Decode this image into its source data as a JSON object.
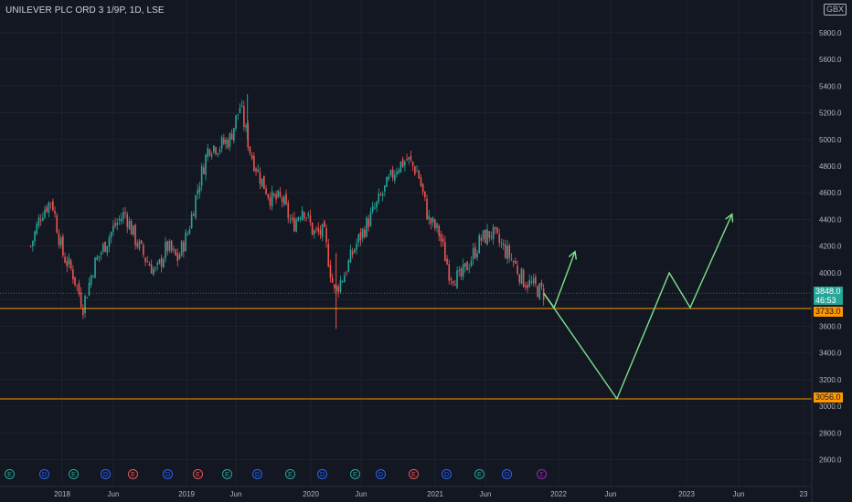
{
  "title": "UNILEVER PLC ORD 3 1/9P, 1D, LSE",
  "currency": "GBX",
  "colors": {
    "background": "#131722",
    "up": "#26a69a",
    "down": "#ef5350",
    "horizontal_line": "#ff9800",
    "projection": "#7ee08a",
    "current_price": "#26a69a"
  },
  "current_price": {
    "value": "3848.0",
    "countdown": "46:53"
  },
  "level_labels": [
    "3733.0",
    "3056.0"
  ],
  "event_markers": [
    "E",
    "D",
    "E",
    "D",
    "E",
    "D",
    "E",
    "E",
    "D",
    "E",
    "D",
    "E",
    "D",
    "E",
    "D",
    "E",
    "D",
    "Σ"
  ],
  "chart_data": {
    "type": "candlestick",
    "title": "UNILEVER PLC ORD 3 1/9P, 1D, LSE",
    "ylim": [
      2500,
      6100
    ],
    "y_ticks": [
      2600,
      2800,
      3000,
      3200,
      3400,
      3600,
      3800,
      4000,
      4200,
      4400,
      4600,
      4800,
      5000,
      5200,
      5400,
      5600,
      5800
    ],
    "x_ticks": [
      "2018",
      "Jun",
      "2019",
      "Jun",
      "2020",
      "Jun",
      "2021",
      "Jun",
      "2022",
      "Jun",
      "2023",
      "Jun",
      "23"
    ],
    "approx_close_path": [
      {
        "x": "2017-10",
        "y": 4200
      },
      {
        "x": "2017-11",
        "y": 4450
      },
      {
        "x": "2017-12",
        "y": 4550
      },
      {
        "x": "2018-01",
        "y": 4150
      },
      {
        "x": "2018-02",
        "y": 4000
      },
      {
        "x": "2018-03",
        "y": 3750
      },
      {
        "x": "2018-04",
        "y": 4050
      },
      {
        "x": "2018-05",
        "y": 4200
      },
      {
        "x": "2018-06",
        "y": 4350
      },
      {
        "x": "2018-07",
        "y": 4450
      },
      {
        "x": "2018-08",
        "y": 4250
      },
      {
        "x": "2018-09",
        "y": 4100
      },
      {
        "x": "2018-10",
        "y": 4000
      },
      {
        "x": "2018-11",
        "y": 4200
      },
      {
        "x": "2018-12",
        "y": 4100
      },
      {
        "x": "2019-01",
        "y": 4300
      },
      {
        "x": "2019-02",
        "y": 4650
      },
      {
        "x": "2019-03",
        "y": 4950
      },
      {
        "x": "2019-04",
        "y": 4950
      },
      {
        "x": "2019-05",
        "y": 5000
      },
      {
        "x": "2019-06",
        "y": 5250
      },
      {
        "x": "2019-07",
        "y": 4900
      },
      {
        "x": "2019-08",
        "y": 4700
      },
      {
        "x": "2019-09",
        "y": 4550
      },
      {
        "x": "2019-10",
        "y": 4550
      },
      {
        "x": "2019-11",
        "y": 4350
      },
      {
        "x": "2019-12",
        "y": 4500
      },
      {
        "x": "2020-01",
        "y": 4300
      },
      {
        "x": "2020-02",
        "y": 4300
      },
      {
        "x": "2020-03",
        "y": 3850
      },
      {
        "x": "2020-04",
        "y": 4000
      },
      {
        "x": "2020-05",
        "y": 4200
      },
      {
        "x": "2020-06",
        "y": 4350
      },
      {
        "x": "2020-07",
        "y": 4500
      },
      {
        "x": "2020-08",
        "y": 4650
      },
      {
        "x": "2020-09",
        "y": 4800
      },
      {
        "x": "2020-10",
        "y": 4850
      },
      {
        "x": "2020-11",
        "y": 4750
      },
      {
        "x": "2020-12",
        "y": 4400
      },
      {
        "x": "2021-01",
        "y": 4300
      },
      {
        "x": "2021-02",
        "y": 4000
      },
      {
        "x": "2021-03",
        "y": 3950
      },
      {
        "x": "2021-04",
        "y": 4100
      },
      {
        "x": "2021-05",
        "y": 4250
      },
      {
        "x": "2021-06",
        "y": 4300
      },
      {
        "x": "2021-07",
        "y": 4200
      },
      {
        "x": "2021-08",
        "y": 4100
      },
      {
        "x": "2021-09",
        "y": 3950
      },
      {
        "x": "2021-10",
        "y": 3900
      },
      {
        "x": "2021-11",
        "y": 3848
      }
    ],
    "horizontal_levels": [
      3733.0,
      3056.0
    ],
    "projection_path_1": [
      {
        "x": "2021-11",
        "y": 3848
      },
      {
        "x": "2021-12",
        "y": 3740
      },
      {
        "x": "2022-02",
        "y": 4160
      }
    ],
    "projection_path_2": [
      {
        "x": "2021-11",
        "y": 3848
      },
      {
        "x": "2022-06",
        "y": 3056
      },
      {
        "x": "2022-11",
        "y": 4000
      },
      {
        "x": "2023-01",
        "y": 3740
      },
      {
        "x": "2023-05",
        "y": 4440
      }
    ]
  }
}
